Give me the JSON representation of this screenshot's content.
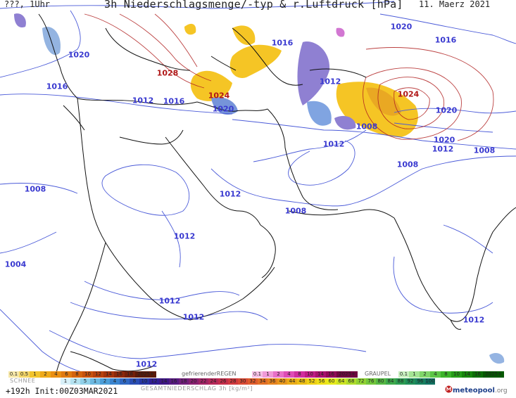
{
  "header": {
    "left": "???, 1Uhr",
    "title": "3h Niederschlagsmenge/-typ & r.Luftdruck [hPa]",
    "date": "11. Maerz 2021"
  },
  "isobar_labels": [
    {
      "text": "1020",
      "hi": false
    },
    {
      "text": "1016",
      "hi": false
    },
    {
      "text": "1020",
      "hi": false
    },
    {
      "text": "1016",
      "hi": false
    },
    {
      "text": "1028",
      "hi": true
    },
    {
      "text": "1024",
      "hi": true
    },
    {
      "text": "1012",
      "hi": false
    },
    {
      "text": "1012",
      "hi": false
    },
    {
      "text": "1016",
      "hi": false
    },
    {
      "text": "1020",
      "hi": false
    },
    {
      "text": "1016",
      "hi": false
    },
    {
      "text": "1012",
      "hi": false
    },
    {
      "text": "1024",
      "hi": true
    },
    {
      "text": "1020",
      "hi": false
    },
    {
      "text": "1008",
      "hi": false
    },
    {
      "text": "1012",
      "hi": false
    },
    {
      "text": "1020",
      "hi": false
    },
    {
      "text": "1012",
      "hi": false
    },
    {
      "text": "1008",
      "hi": false
    },
    {
      "text": "1008",
      "hi": false
    },
    {
      "text": "1008",
      "hi": false
    },
    {
      "text": "1012",
      "hi": false
    },
    {
      "text": "1008",
      "hi": false
    },
    {
      "text": "1012",
      "hi": false
    },
    {
      "text": "1004",
      "hi": false
    },
    {
      "text": "1012",
      "hi": false
    },
    {
      "text": "1012",
      "hi": false
    },
    {
      "text": "1012",
      "hi": false
    },
    {
      "text": "1012",
      "hi": false
    }
  ],
  "legend": {
    "snow_label": "SCHNEE",
    "snow_values": [
      "0.1",
      "0.5",
      "1",
      "2",
      "4",
      "6",
      "8",
      "10",
      "12",
      "14",
      "16",
      "18",
      "2025+"
    ],
    "freezing_label": "gefrierenderREGEN",
    "freezing_values": [
      "0.1",
      "1",
      "2",
      "4",
      "8",
      "10",
      "14",
      "16",
      "2025+"
    ],
    "graupel_label": "GRAUPEL",
    "graupel_values": [
      "0.1",
      "1",
      "2",
      "4",
      "8",
      "10",
      "14",
      "16",
      "2025+"
    ],
    "total_values": [
      "1",
      "2",
      "5",
      "1",
      "2",
      "4",
      "6",
      "8",
      "10",
      "12",
      "14",
      "16",
      "18",
      "20",
      "22",
      "24",
      "26",
      "28",
      "30",
      "32",
      "34",
      "36",
      "40",
      "44",
      "48",
      "52",
      "56",
      "60",
      "64",
      "68",
      "72",
      "76",
      "80",
      "84",
      "88",
      "92",
      "96",
      "100"
    ],
    "total_label": "GESAMTNIEDERSCHLAG 3h [kg/m²]"
  },
  "footer": {
    "init": "+192h Init:00Z03MAR2021",
    "brand": "meteopool",
    "brand_suffix": ".org"
  },
  "colors": {
    "isobar": "#4a5ad8",
    "high_isobar": "#b02020",
    "coast": "#111111",
    "rain": "#f5c21a",
    "snow": "#8a7ad0"
  }
}
